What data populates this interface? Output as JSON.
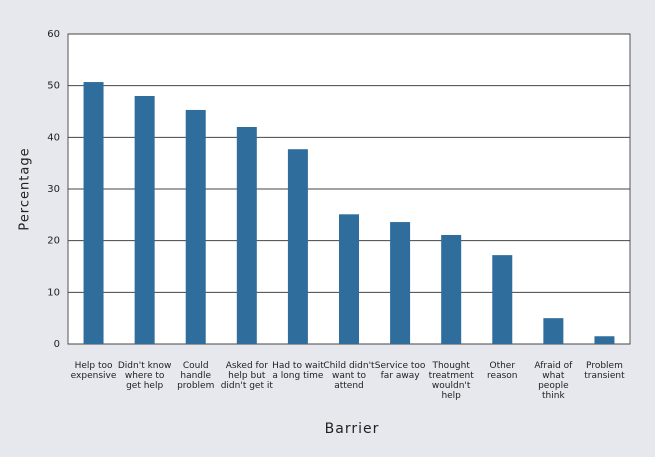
{
  "chart_data": {
    "type": "bar",
    "x_label": "Barrier",
    "y_label": "Percentage",
    "categories": [
      "Help too expensive",
      "Didn't know where to get help",
      "Could handle problem",
      "Asked for help but didn't get it",
      "Had to wait a long time",
      "Child didn't want to attend",
      "Service too far away",
      "Thought treatment wouldn't help",
      "Other reason",
      "Afraid of what people think",
      "Problem transient"
    ],
    "values": [
      50.7,
      48.0,
      45.3,
      42.0,
      37.7,
      25.1,
      23.6,
      21.1,
      17.2,
      5.0,
      1.5
    ],
    "color": "#2f6e9c",
    "ylim": [
      0,
      60
    ],
    "yticks": [
      0,
      10,
      20,
      30,
      40,
      50,
      60
    ],
    "grid": true
  }
}
